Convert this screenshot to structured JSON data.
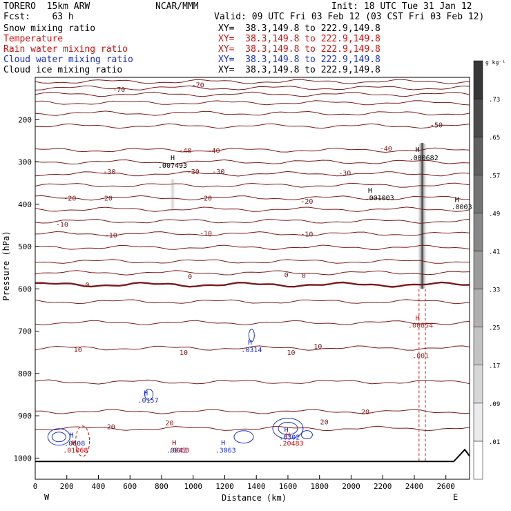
{
  "header": {
    "model": "TORERO  15km ARW",
    "org": "NCAR/MMM",
    "init": "Init: 18 UTC Tue 31 Jan 12",
    "fcst": "Fcst:    63 h",
    "valid": "Valid: 09 UTC Fri 03 Feb 12 (03 CST Fri 03 Feb 12)",
    "fields": [
      {
        "name": "Snow mixing ratio",
        "xy": "XY=  38.3,149.8 to 222.9,149.8",
        "color": "#000000"
      },
      {
        "name": "Temperature",
        "xy": "XY=  38.3,149.8 to 222.9,149.8",
        "color": "#cc1010"
      },
      {
        "name": "Rain water mixing ratio",
        "xy": "XY=  38.3,149.8 to 222.9,149.8",
        "color": "#cc1010"
      },
      {
        "name": "Cloud water mixing ratio",
        "xy": "XY=  38.3,149.8 to 222.9,149.8",
        "color": "#1a2fcc"
      },
      {
        "name": "Cloud ice mixing ratio",
        "xy": "XY=  38.3,149.8 to 222.9,149.8",
        "color": "#000000"
      }
    ]
  },
  "colorbar": {
    "unit": "g kg⁻¹",
    "levels": [
      0.01,
      0.09,
      0.17,
      0.25,
      0.33,
      0.41,
      0.49,
      0.57,
      0.65,
      0.73
    ],
    "labels": [
      ".01",
      ".09",
      ".17",
      ".25",
      ".33",
      ".41",
      ".49",
      ".57",
      ".65",
      ".73"
    ]
  },
  "chart_data": {
    "type": "cross-section",
    "title": "Snow mixing ratio / Temperature / Rain water / Cloud water / Cloud ice",
    "xlabel": "Distance (km)",
    "ylabel": "Pressure (hPa)",
    "xlim": [
      0,
      2750
    ],
    "ylim": [
      1050,
      100
    ],
    "x_ticks": [
      0,
      200,
      400,
      600,
      800,
      1000,
      1200,
      1400,
      1600,
      1800,
      2000,
      2200,
      2400,
      2600
    ],
    "x_tick_labels": [
      "0",
      "200",
      "400",
      "600",
      "800",
      "1000",
      "1200",
      "1400",
      "1600",
      "1800",
      "2000",
      "2200",
      "2400",
      "2600"
    ],
    "y_ticks": [
      200,
      300,
      400,
      500,
      600,
      700,
      800,
      900,
      1000
    ],
    "y_tick_labels": [
      "200",
      "300",
      "400",
      "500",
      "600",
      "700",
      "800",
      "900",
      "1000"
    ],
    "west_label": "W",
    "east_label": "E",
    "isotherms": [
      {
        "temp": -70,
        "p": 110
      },
      {
        "temp": -60,
        "p": 125
      },
      {
        "temp": -50,
        "p": 140
      },
      {
        "temp": -40,
        "p": 160
      },
      {
        "temp": -40,
        "p": 185
      },
      {
        "temp": -40,
        "p": 215
      },
      {
        "temp": -40,
        "p": 272
      },
      {
        "temp": -30,
        "p": 300
      },
      {
        "temp": -30,
        "p": 328
      },
      {
        "temp": -20,
        "p": 355
      },
      {
        "temp": -20,
        "p": 385
      },
      {
        "temp": -20,
        "p": 412
      },
      {
        "temp": -10,
        "p": 440
      },
      {
        "temp": -10,
        "p": 470
      },
      {
        "temp": -10,
        "p": 502
      },
      {
        "temp": 0,
        "p": 535
      },
      {
        "temp": 0,
        "p": 562
      },
      {
        "temp": 0,
        "p": 590
      },
      {
        "temp": 10,
        "p": 630
      },
      {
        "temp": 10,
        "p": 680
      },
      {
        "temp": 10,
        "p": 740
      },
      {
        "temp": 20,
        "p": 820
      },
      {
        "temp": 20,
        "p": 890
      },
      {
        "temp": 20,
        "p": 930
      }
    ],
    "temperature_labels": [
      {
        "text": "-70",
        "x": 1030,
        "p": 117
      },
      {
        "text": "-70",
        "x": 530,
        "p": 128
      },
      {
        "text": "-50",
        "x": 2540,
        "p": 212
      },
      {
        "text": "-40",
        "x": 950,
        "p": 272
      },
      {
        "text": "-40",
        "x": 1130,
        "p": 272
      },
      {
        "text": "-40",
        "x": 2220,
        "p": 267
      },
      {
        "text": "-30",
        "x": 470,
        "p": 322
      },
      {
        "text": "-30",
        "x": 1000,
        "p": 322
      },
      {
        "text": "-30",
        "x": 1160,
        "p": 322
      },
      {
        "text": "-30",
        "x": 1960,
        "p": 325
      },
      {
        "text": "-20",
        "x": 220,
        "p": 385
      },
      {
        "text": "-20",
        "x": 450,
        "p": 385
      },
      {
        "text": "-20",
        "x": 1080,
        "p": 385
      },
      {
        "text": "-20",
        "x": 1720,
        "p": 392
      },
      {
        "text": "-10",
        "x": 170,
        "p": 447
      },
      {
        "text": "-10",
        "x": 480,
        "p": 472
      },
      {
        "text": "-10",
        "x": 1080,
        "p": 468
      },
      {
        "text": "-10",
        "x": 1720,
        "p": 470
      },
      {
        "text": "0",
        "x": 330,
        "p": 590
      },
      {
        "text": "0",
        "x": 980,
        "p": 570
      },
      {
        "text": "0",
        "x": 1590,
        "p": 566
      },
      {
        "text": "0",
        "x": 1700,
        "p": 568
      },
      {
        "text": "10",
        "x": 270,
        "p": 743
      },
      {
        "text": "10",
        "x": 940,
        "p": 750
      },
      {
        "text": "10",
        "x": 1620,
        "p": 750
      },
      {
        "text": "10",
        "x": 1790,
        "p": 735
      },
      {
        "text": "20",
        "x": 480,
        "p": 925
      },
      {
        "text": "20",
        "x": 850,
        "p": 916
      },
      {
        "text": "20",
        "x": 1830,
        "p": 914
      },
      {
        "text": "20",
        "x": 2090,
        "p": 890
      }
    ],
    "highs": [
      {
        "text": ".007493",
        "x": 870,
        "p": 307,
        "color": "#000000",
        "x_h": 870,
        "p_h": 289
      },
      {
        "text": ".000682",
        "x": 2460,
        "p": 289,
        "color": "#000000",
        "x_h": 2420,
        "p_h": 270
      },
      {
        "text": ".001003",
        "x": 2180,
        "p": 384,
        "color": "#000000",
        "x_h": 2120,
        "p_h": 366
      },
      {
        "text": ".0003",
        "x": 2700,
        "p": 405,
        "color": "#000000",
        "x_h": 2670,
        "p_h": 388
      },
      {
        "text": ".00854",
        "x": 2440,
        "p": 685,
        "color": "#cc1010",
        "x_h": 2420,
        "p_h": 668
      },
      {
        "text": ".001",
        "x": 2440,
        "p": 757,
        "color": "#cc1010",
        "x_h": null,
        "p_h": null
      },
      {
        "text": ".0314",
        "x": 1370,
        "p": 743,
        "color": "#1a2fcc",
        "x_h": 1360,
        "p_h": 725
      },
      {
        "text": ".0157",
        "x": 715,
        "p": 862,
        "color": "#1a2fcc",
        "x_h": 700,
        "p_h": 845
      },
      {
        "text": ".0608",
        "x": 250,
        "p": 964,
        "color": "#1a2fcc",
        "x_h": 230,
        "p_h": 945
      },
      {
        "text": ".01068",
        "x": 255,
        "p": 981,
        "color": "#cc1010",
        "x_h": 245,
        "p_h": 963
      },
      {
        "text": ".0043",
        "x": 895,
        "p": 981,
        "color": "#1a2fcc",
        "x_h": 880,
        "p_h": 963
      },
      {
        "text": ".0063",
        "x": 910,
        "p": 981,
        "color": "#cc1010",
        "x_h": 880,
        "p_h": 963
      },
      {
        "text": ".3063",
        "x": 1205,
        "p": 981,
        "color": "#1a2fcc",
        "x_h": 1190,
        "p_h": 963
      },
      {
        "text": ".6302",
        "x": 1610,
        "p": 950,
        "color": "#1a2fcc",
        "x_h": 1590,
        "p_h": 932
      },
      {
        "text": ".20483",
        "x": 1620,
        "p": 964,
        "color": "#cc1010",
        "x_h": 1600,
        "p_h": 945
      }
    ],
    "snow_shading": [
      {
        "x": 2450,
        "p_top": 255,
        "p_bottom": 600,
        "max": 0.73
      },
      {
        "x": 870,
        "p_top": 340,
        "p_bottom": 415,
        "max": 0.09
      }
    ],
    "terrain": {
      "x": [
        0,
        2650,
        2720,
        2750
      ],
      "p": [
        1008,
        1008,
        980,
        995
      ]
    }
  }
}
